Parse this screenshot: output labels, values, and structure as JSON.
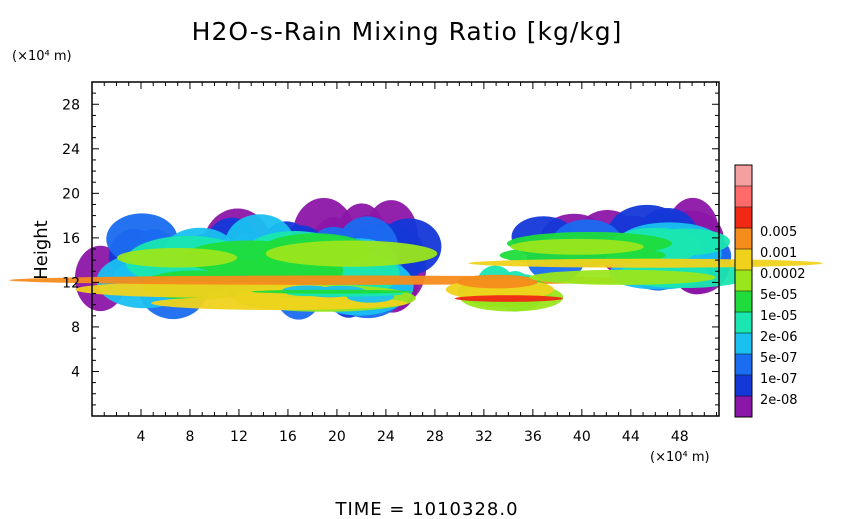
{
  "chart_data": {
    "type": "heatmap",
    "title": "H2O-s-Rain Mixing Ratio [kg/kg]",
    "ylabel": "Height",
    "xlabel": "",
    "x_unit": "(×10⁴ m)",
    "y_unit": "(×10⁴ m)",
    "xlim": [
      0,
      51.2
    ],
    "ylim": [
      0,
      30
    ],
    "x_ticks": [
      4,
      8,
      12,
      16,
      20,
      24,
      28,
      32,
      36,
      40,
      44,
      48
    ],
    "y_ticks": [
      4,
      8,
      12,
      16,
      20,
      24,
      28
    ],
    "time_label": "TIME = 1010328.0",
    "legend": {
      "labels": [
        "2e-08",
        "1e-07",
        "5e-07",
        "2e-06",
        "1e-05",
        "5e-05",
        "0.0002",
        "0.001",
        "0.005"
      ],
      "colors": [
        "#8c16a8",
        "#1438d8",
        "#1a6cf0",
        "#19c0f0",
        "#19e6b0",
        "#1fdc3c",
        "#9ae61c",
        "#f0d21c",
        "#f58c1c",
        "#f02814",
        "#ff6a6a",
        "#f5a0a0"
      ]
    },
    "regions": [
      {
        "x": [
          0,
          27.5
        ],
        "y": [
          10.5,
          18
        ],
        "min_level": 0,
        "max_level": 8
      },
      {
        "x": [
          16,
          24.5
        ],
        "y": [
          10.5,
          11.5
        ],
        "min_level": 3,
        "max_level": 5
      },
      {
        "x": [
          31.5,
          35.5
        ],
        "y": [
          10,
          13.5
        ],
        "min_level": 4,
        "max_level": 9
      },
      {
        "x": [
          36,
          51.2
        ],
        "y": [
          12,
          18
        ],
        "min_level": 0,
        "max_level": 7
      }
    ]
  }
}
